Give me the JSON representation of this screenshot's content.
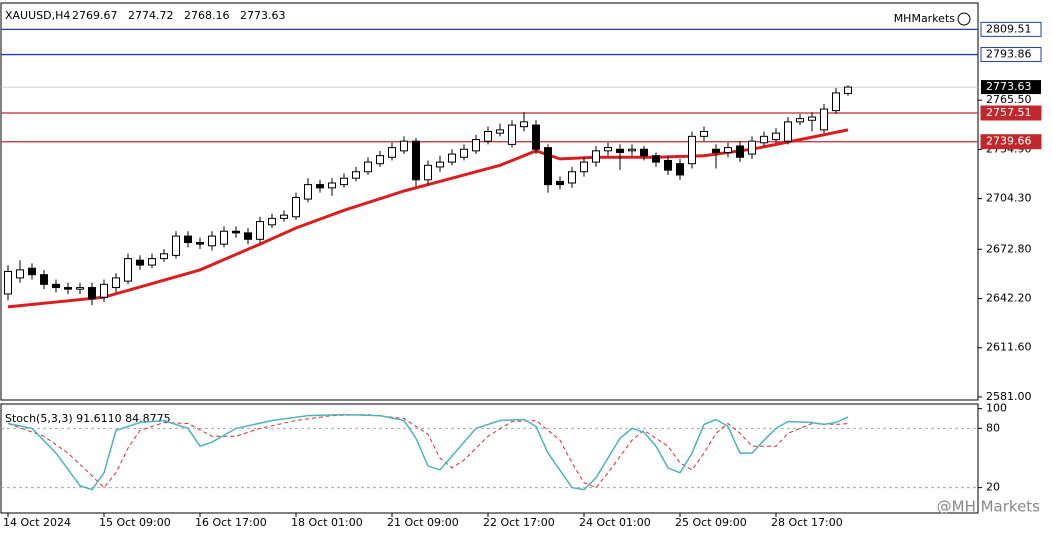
{
  "chart_data": {
    "type": "candlestick",
    "title": "XAUUSD,H4",
    "watermark_top": "MHMarkets",
    "watermark_bottom": "@MH Markets",
    "categories": [
      "14 Oct 2024",
      null,
      null,
      null,
      null,
      null,
      null,
      null,
      "15 Oct 09:00",
      null,
      null,
      null,
      null,
      null,
      null,
      null,
      "16 Oct 17:00",
      null,
      null,
      null,
      null,
      null,
      null,
      null,
      "18 Oct 01:00",
      null,
      null,
      null,
      null,
      null,
      null,
      null,
      "21 Oct 09:00",
      null,
      null,
      null,
      null,
      null,
      null,
      null,
      "22 Oct 17:00",
      null,
      null,
      null,
      null,
      null,
      null,
      null,
      "24 Oct 01:00",
      null,
      null,
      null,
      null,
      null,
      null,
      null,
      "25 Oct 09:00",
      null,
      null,
      null,
      null,
      null,
      null,
      null,
      "28 Oct 17:00",
      null,
      null,
      null,
      null,
      null,
      null
    ],
    "open": [
      2645,
      2655,
      2661,
      2657,
      2651,
      2649,
      2648,
      2649,
      2643,
      2649,
      2653,
      2666,
      2663,
      2667,
      2669,
      2681,
      2677,
      2675,
      2676,
      2684,
      2683,
      2679,
      2688,
      2692,
      2693,
      2704,
      2713,
      2711,
      2713,
      2717,
      2721,
      2726,
      2730,
      2734,
      2740,
      2716,
      2724,
      2727,
      2730,
      2734,
      2740,
      2745,
      2738,
      2749,
      2750,
      2736,
      2715,
      2714,
      2721,
      2727,
      2734,
      2735,
      2734,
      2735,
      2731,
      2728,
      2726,
      2726,
      2743,
      2735,
      2733,
      2737,
      2732,
      2739,
      2741,
      2740,
      2752,
      2753,
      2747,
      2759,
      2769.67
    ],
    "high": [
      2663,
      2666,
      2664,
      2660,
      2654,
      2652,
      2652,
      2652,
      2654,
      2658,
      2670,
      2669,
      2670,
      2673,
      2684,
      2684,
      2680,
      2684,
      2687,
      2687,
      2686,
      2693,
      2695,
      2697,
      2708,
      2717,
      2716,
      2717,
      2720,
      2724,
      2730,
      2734,
      2739,
      2743,
      2742,
      2728,
      2731,
      2735,
      2738,
      2744,
      2749,
      2751,
      2753,
      2758,
      2753,
      2738,
      2718,
      2724,
      2730,
      2737,
      2739,
      2738,
      2738,
      2737,
      2733,
      2731,
      2729,
      2746,
      2749,
      2738,
      2739,
      2740,
      2743,
      2746,
      2748,
      2755,
      2757,
      2758,
      2763,
      2773,
      2774.72
    ],
    "low": [
      2641,
      2652,
      2654,
      2648,
      2646,
      2645,
      2645,
      2638,
      2640,
      2646,
      2651,
      2660,
      2661,
      2665,
      2667,
      2674,
      2673,
      2672,
      2674,
      2680,
      2676,
      2677,
      2686,
      2690,
      2691,
      2702,
      2708,
      2706,
      2711,
      2715,
      2719,
      2724,
      2728,
      2732,
      2712,
      2713,
      2721,
      2725,
      2728,
      2732,
      2738,
      2743,
      2736,
      2746,
      2732,
      2708,
      2710,
      2711,
      2718,
      2724,
      2731,
      2722,
      2731,
      2728,
      2724,
      2719,
      2716,
      2723,
      2740,
      2723,
      2730,
      2727,
      2729,
      2737,
      2739,
      2738,
      2750,
      2746,
      2745,
      2757,
      2768.16
    ],
    "close": [
      2659,
      2660,
      2657,
      2651,
      2649,
      2648,
      2649,
      2642,
      2651,
      2655,
      2667,
      2663,
      2667,
      2670,
      2681,
      2677,
      2676,
      2681,
      2684,
      2683,
      2679,
      2690,
      2692,
      2694,
      2705,
      2713,
      2711,
      2714,
      2717,
      2721,
      2727,
      2731,
      2736,
      2740,
      2716,
      2725,
      2727,
      2732,
      2735,
      2741,
      2746,
      2747,
      2750,
      2752,
      2735,
      2713,
      2713,
      2721,
      2727,
      2734,
      2736,
      2733,
      2735,
      2731,
      2727,
      2722,
      2719,
      2743,
      2746,
      2733,
      2736,
      2730,
      2740,
      2743,
      2745,
      2752,
      2754,
      2755,
      2760,
      2770,
      2773.63
    ],
    "ma": {
      "color": "#d81e1e",
      "x": [
        0,
        8,
        16,
        21,
        24,
        28,
        33,
        37,
        41,
        44,
        46,
        49,
        54,
        58,
        62,
        66,
        70
      ],
      "values": [
        2637,
        2643,
        2660,
        2676,
        2686,
        2697,
        2709,
        2717,
        2725,
        2734,
        2729,
        2730,
        2730,
        2731,
        2735,
        2741,
        2747
      ]
    },
    "ylim": [
      2579.1,
      2825.9
    ],
    "yticks": [
      {
        "value": 2581,
        "label": "2581.00"
      },
      {
        "value": 2611.6,
        "label": "2611.60"
      },
      {
        "value": 2642.2,
        "label": "2642.20"
      },
      {
        "value": 2672.8,
        "label": "2672.80"
      },
      {
        "value": 2704.3,
        "label": "2704.30"
      },
      {
        "value": 2734.9,
        "label": "2734.90"
      },
      {
        "value": 2765.5,
        "label": "2765.50"
      }
    ],
    "levels": [
      {
        "value": 2809.51,
        "color": "#1f3fa6",
        "style": "outline"
      },
      {
        "value": 2793.86,
        "color": "#1f3fa6",
        "style": "outline"
      },
      {
        "value": 2757.51,
        "color": "#c0282d",
        "style": "filled"
      },
      {
        "value": 2739.66,
        "color": "#c0282d",
        "style": "filled"
      }
    ],
    "stoch": {
      "title": "Stoch(5,3,3) 91.6110 84.8775",
      "ylim": [
        -5.7,
        104.7
      ],
      "yticks": [
        100,
        80,
        20
      ],
      "levels": [
        80,
        20
      ],
      "main": {
        "color": "#4fb3b8",
        "x": [
          0,
          2,
          4,
          6,
          7,
          8,
          9,
          11,
          13,
          15,
          16,
          17,
          19,
          22,
          25,
          28,
          31,
          33,
          34,
          35,
          36,
          37,
          39,
          41,
          43,
          44,
          45,
          47,
          48,
          49,
          51,
          52,
          53,
          54,
          55,
          56,
          57,
          58,
          59,
          60,
          61,
          62,
          63,
          64,
          65,
          67,
          68,
          69,
          70
        ],
        "values": [
          85,
          80,
          55,
          22,
          18,
          35,
          78,
          86,
          88,
          80,
          62,
          66,
          80,
          88,
          93,
          94,
          93,
          88,
          70,
          42,
          38,
          52,
          80,
          88,
          89,
          82,
          55,
          20,
          18,
          30,
          70,
          80,
          76,
          62,
          40,
          35,
          55,
          84,
          89,
          82,
          55,
          55,
          68,
          80,
          87,
          86,
          84,
          86,
          91.611
        ]
      },
      "signal": {
        "color": "#d03030",
        "x": [
          0,
          3,
          5,
          7,
          8,
          9,
          10,
          11,
          13,
          15,
          17,
          19,
          21,
          24,
          27,
          30,
          33,
          35,
          36,
          37,
          38,
          40,
          42,
          44,
          46,
          47,
          48,
          49,
          50,
          52,
          53,
          55,
          56,
          57,
          58,
          59,
          60,
          61,
          62,
          64,
          65,
          67,
          69,
          70
        ],
        "values": [
          85,
          72,
          55,
          32,
          20,
          35,
          60,
          78,
          86,
          85,
          72,
          72,
          80,
          88,
          93,
          94,
          90,
          74,
          50,
          40,
          48,
          72,
          87,
          88,
          68,
          45,
          25,
          20,
          35,
          68,
          78,
          62,
          45,
          38,
          55,
          75,
          85,
          75,
          62,
          62,
          75,
          85,
          84,
          84.8775
        ]
      }
    }
  }
}
